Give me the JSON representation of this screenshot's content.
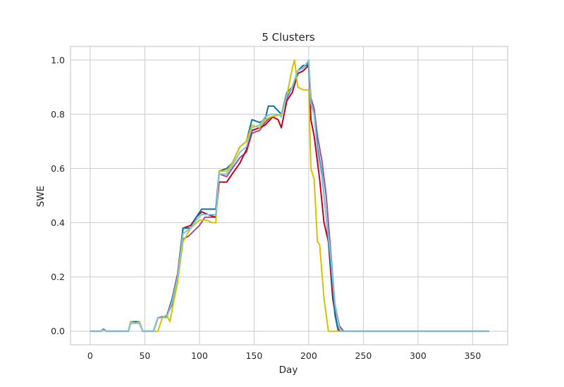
{
  "chart_data": {
    "type": "line",
    "title": "5 Clusters",
    "xlabel": "Day",
    "ylabel": "SWE",
    "xlim": [
      -18,
      382
    ],
    "ylim": [
      -0.05,
      1.05
    ],
    "xticks": [
      0,
      50,
      100,
      150,
      200,
      250,
      300,
      350
    ],
    "yticks": [
      0.0,
      0.2,
      0.4,
      0.6,
      0.8,
      1.0
    ],
    "xtick_labels": [
      "0",
      "50",
      "100",
      "150",
      "200",
      "250",
      "300",
      "350"
    ],
    "ytick_labels": [
      "0.0",
      "0.2",
      "0.4",
      "0.6",
      "0.8",
      "1.0"
    ],
    "grid": true,
    "series": [
      {
        "color": "#9b4fa0",
        "points": [
          [
            0,
            0
          ],
          [
            10,
            0
          ],
          [
            12,
            0.008
          ],
          [
            15,
            0
          ],
          [
            35,
            0
          ],
          [
            37,
            0.035
          ],
          [
            45,
            0.035
          ],
          [
            48,
            0
          ],
          [
            58,
            0
          ],
          [
            62,
            0.05
          ],
          [
            70,
            0.055
          ],
          [
            75,
            0.1
          ],
          [
            80,
            0.2
          ],
          [
            85,
            0.34
          ],
          [
            90,
            0.35
          ],
          [
            95,
            0.37
          ],
          [
            100,
            0.39
          ],
          [
            105,
            0.42
          ],
          [
            115,
            0.42
          ],
          [
            118,
            0.58
          ],
          [
            125,
            0.57
          ],
          [
            130,
            0.6
          ],
          [
            137,
            0.64
          ],
          [
            143,
            0.66
          ],
          [
            148,
            0.73
          ],
          [
            155,
            0.74
          ],
          [
            160,
            0.77
          ],
          [
            165,
            0.79
          ],
          [
            175,
            0.8
          ],
          [
            180,
            0.86
          ],
          [
            185,
            0.9
          ],
          [
            190,
            0.96
          ],
          [
            195,
            0.97
          ],
          [
            200,
            0.99
          ],
          [
            202,
            0.86
          ],
          [
            205,
            0.82
          ],
          [
            208,
            0.72
          ],
          [
            212,
            0.63
          ],
          [
            216,
            0.5
          ],
          [
            220,
            0.3
          ],
          [
            224,
            0.1
          ],
          [
            228,
            0.02
          ],
          [
            232,
            0
          ],
          [
            365,
            0
          ]
        ]
      },
      {
        "color": "#c4001a",
        "points": [
          [
            0,
            0
          ],
          [
            10,
            0
          ],
          [
            12,
            0.005
          ],
          [
            15,
            0
          ],
          [
            35,
            0
          ],
          [
            37,
            0.03
          ],
          [
            45,
            0.03
          ],
          [
            48,
            0
          ],
          [
            58,
            0
          ],
          [
            62,
            0.05
          ],
          [
            70,
            0.055
          ],
          [
            75,
            0.12
          ],
          [
            80,
            0.21
          ],
          [
            85,
            0.38
          ],
          [
            92,
            0.39
          ],
          [
            97,
            0.42
          ],
          [
            102,
            0.44
          ],
          [
            108,
            0.43
          ],
          [
            115,
            0.42
          ],
          [
            118,
            0.55
          ],
          [
            125,
            0.55
          ],
          [
            130,
            0.58
          ],
          [
            137,
            0.62
          ],
          [
            143,
            0.67
          ],
          [
            148,
            0.74
          ],
          [
            155,
            0.75
          ],
          [
            160,
            0.76
          ],
          [
            167,
            0.79
          ],
          [
            172,
            0.78
          ],
          [
            175,
            0.75
          ],
          [
            180,
            0.85
          ],
          [
            185,
            0.88
          ],
          [
            190,
            0.95
          ],
          [
            195,
            0.96
          ],
          [
            200,
            0.98
          ],
          [
            202,
            0.78
          ],
          [
            205,
            0.72
          ],
          [
            210,
            0.56
          ],
          [
            214,
            0.4
          ],
          [
            218,
            0.33
          ],
          [
            222,
            0.12
          ],
          [
            226,
            0.02
          ],
          [
            228,
            0
          ],
          [
            365,
            0
          ]
        ]
      },
      {
        "color": "#0f6f9e",
        "points": [
          [
            0,
            0
          ],
          [
            10,
            0
          ],
          [
            12,
            0.007
          ],
          [
            15,
            0
          ],
          [
            35,
            0
          ],
          [
            37,
            0.035
          ],
          [
            45,
            0.035
          ],
          [
            48,
            0
          ],
          [
            58,
            0
          ],
          [
            62,
            0.05
          ],
          [
            70,
            0.05
          ],
          [
            75,
            0.12
          ],
          [
            80,
            0.2
          ],
          [
            85,
            0.38
          ],
          [
            92,
            0.38
          ],
          [
            97,
            0.42
          ],
          [
            102,
            0.45
          ],
          [
            108,
            0.45
          ],
          [
            115,
            0.45
          ],
          [
            118,
            0.59
          ],
          [
            125,
            0.6
          ],
          [
            130,
            0.62
          ],
          [
            137,
            0.68
          ],
          [
            143,
            0.7
          ],
          [
            148,
            0.78
          ],
          [
            155,
            0.77
          ],
          [
            160,
            0.78
          ],
          [
            163,
            0.83
          ],
          [
            168,
            0.83
          ],
          [
            175,
            0.8
          ],
          [
            180,
            0.88
          ],
          [
            185,
            0.9
          ],
          [
            190,
            0.96
          ],
          [
            195,
            0.98
          ],
          [
            200,
            0.98
          ],
          [
            202,
            0.84
          ],
          [
            205,
            0.8
          ],
          [
            208,
            0.68
          ],
          [
            212,
            0.58
          ],
          [
            216,
            0.42
          ],
          [
            220,
            0.25
          ],
          [
            224,
            0.06
          ],
          [
            227,
            0
          ],
          [
            365,
            0
          ]
        ]
      },
      {
        "color": "#d4c400",
        "points": [
          [
            0,
            0
          ],
          [
            10,
            0
          ],
          [
            12,
            0.004
          ],
          [
            15,
            0
          ],
          [
            35,
            0
          ],
          [
            37,
            0.035
          ],
          [
            42,
            0.03
          ],
          [
            45,
            0.035
          ],
          [
            48,
            0
          ],
          [
            62,
            0
          ],
          [
            66,
            0.05
          ],
          [
            70,
            0.06
          ],
          [
            73,
            0.035
          ],
          [
            76,
            0.1
          ],
          [
            80,
            0.18
          ],
          [
            85,
            0.33
          ],
          [
            92,
            0.38
          ],
          [
            100,
            0.41
          ],
          [
            106,
            0.41
          ],
          [
            112,
            0.4
          ],
          [
            115,
            0.4
          ],
          [
            118,
            0.59
          ],
          [
            125,
            0.59
          ],
          [
            130,
            0.62
          ],
          [
            137,
            0.68
          ],
          [
            143,
            0.7
          ],
          [
            148,
            0.76
          ],
          [
            155,
            0.75
          ],
          [
            160,
            0.78
          ],
          [
            165,
            0.79
          ],
          [
            175,
            0.8
          ],
          [
            180,
            0.87
          ],
          [
            185,
            0.97
          ],
          [
            187,
            1.0
          ],
          [
            190,
            0.9
          ],
          [
            195,
            0.89
          ],
          [
            200,
            0.89
          ],
          [
            202,
            0.6
          ],
          [
            205,
            0.56
          ],
          [
            208,
            0.33
          ],
          [
            210,
            0.32
          ],
          [
            214,
            0.12
          ],
          [
            218,
            0
          ],
          [
            365,
            0
          ]
        ]
      },
      {
        "color": "#7cc8d8",
        "points": [
          [
            0,
            0
          ],
          [
            10,
            0
          ],
          [
            12,
            0.005
          ],
          [
            15,
            0
          ],
          [
            35,
            0
          ],
          [
            37,
            0.03
          ],
          [
            45,
            0.03
          ],
          [
            48,
            0
          ],
          [
            58,
            0
          ],
          [
            62,
            0.05
          ],
          [
            70,
            0.05
          ],
          [
            75,
            0.11
          ],
          [
            80,
            0.2
          ],
          [
            85,
            0.36
          ],
          [
            92,
            0.38
          ],
          [
            97,
            0.41
          ],
          [
            102,
            0.43
          ],
          [
            108,
            0.43
          ],
          [
            115,
            0.43
          ],
          [
            118,
            0.58
          ],
          [
            125,
            0.58
          ],
          [
            130,
            0.61
          ],
          [
            137,
            0.66
          ],
          [
            143,
            0.68
          ],
          [
            148,
            0.75
          ],
          [
            155,
            0.76
          ],
          [
            160,
            0.79
          ],
          [
            165,
            0.8
          ],
          [
            172,
            0.8
          ],
          [
            175,
            0.79
          ],
          [
            180,
            0.87
          ],
          [
            185,
            0.9
          ],
          [
            190,
            0.96
          ],
          [
            195,
            0.97
          ],
          [
            200,
            1.0
          ],
          [
            202,
            0.84
          ],
          [
            205,
            0.8
          ],
          [
            208,
            0.66
          ],
          [
            212,
            0.57
          ],
          [
            216,
            0.42
          ],
          [
            220,
            0.28
          ],
          [
            224,
            0.1
          ],
          [
            228,
            0.01
          ],
          [
            230,
            0
          ],
          [
            365,
            0
          ]
        ]
      }
    ]
  }
}
